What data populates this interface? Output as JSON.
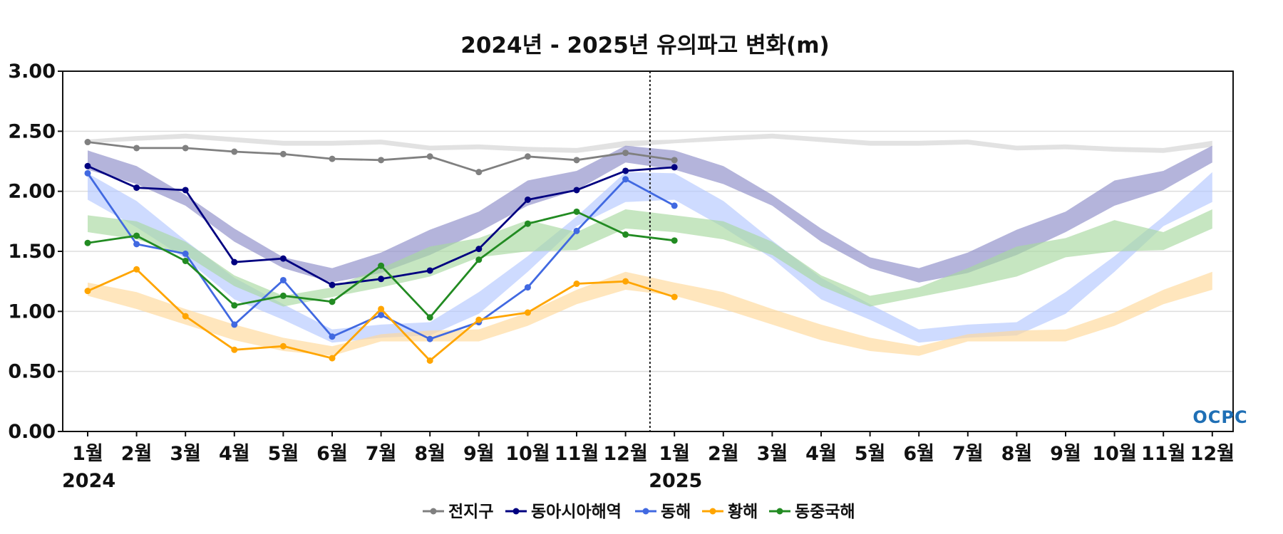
{
  "chart_data": {
    "type": "line",
    "title": "2024년 - 2025년 유의파고 변화(m)",
    "xlabel": "",
    "ylabel": "",
    "ylim": [
      0,
      3
    ],
    "y_ticks": [
      "0.00",
      "0.50",
      "1.00",
      "1.50",
      "2.00",
      "2.50",
      "3.00"
    ],
    "x_tick_labels": [
      "1월",
      "2월",
      "3월",
      "4월",
      "5월",
      "6월",
      "7월",
      "8월",
      "9월",
      "10월",
      "11월",
      "12월",
      "1월",
      "2월",
      "3월",
      "4월",
      "5월",
      "6월",
      "7월",
      "8월",
      "9월",
      "10월",
      "11월",
      "12월"
    ],
    "year_labels": [
      "2024",
      "2025"
    ],
    "year_divider_after_month_index": 11,
    "grid": "horizontal",
    "legend_position": "bottom",
    "series": [
      {
        "name": "전지구",
        "color": "#808080",
        "values": [
          2.41,
          2.36,
          2.36,
          2.33,
          2.31,
          2.27,
          2.26,
          2.29,
          2.16,
          2.29,
          2.26,
          2.32,
          2.26
        ]
      },
      {
        "name": "동아시아해역",
        "color": "#000080",
        "values": [
          2.21,
          2.03,
          2.01,
          1.41,
          1.44,
          1.22,
          1.27,
          1.34,
          1.52,
          1.93,
          2.01,
          2.17,
          2.2
        ]
      },
      {
        "name": "동해",
        "color": "#4169E1",
        "values": [
          2.15,
          1.56,
          1.48,
          0.89,
          1.26,
          0.79,
          0.97,
          0.77,
          0.91,
          1.2,
          1.67,
          2.1,
          1.88
        ]
      },
      {
        "name": "황해",
        "color": "#FFA500",
        "values": [
          1.17,
          1.35,
          0.96,
          0.68,
          0.71,
          0.61,
          1.02,
          0.59,
          0.93,
          0.99,
          1.23,
          1.25,
          1.12
        ]
      },
      {
        "name": "동중국해",
        "color": "#228B22",
        "values": [
          1.57,
          1.63,
          1.42,
          1.05,
          1.13,
          1.08,
          1.38,
          0.95,
          1.43,
          1.73,
          1.83,
          1.64,
          1.59
        ]
      }
    ],
    "climatology_bands": [
      {
        "color": "#D3D3D3",
        "low": [
          2.4,
          2.42,
          2.44,
          2.41,
          2.38,
          2.38,
          2.39,
          2.34,
          2.35,
          2.33,
          2.32,
          2.37
        ],
        "high": [
          2.43,
          2.46,
          2.48,
          2.45,
          2.42,
          2.42,
          2.43,
          2.38,
          2.39,
          2.37,
          2.36,
          2.42
        ]
      },
      {
        "color": "#8C8CC8",
        "low": [
          2.18,
          2.06,
          1.88,
          1.58,
          1.36,
          1.24,
          1.32,
          1.47,
          1.66,
          1.88,
          2.01,
          2.24
        ],
        "high": [
          2.34,
          2.21,
          1.97,
          1.69,
          1.45,
          1.36,
          1.49,
          1.68,
          1.83,
          2.09,
          2.17,
          2.38
        ]
      },
      {
        "color": "#B4C8FF",
        "low": [
          1.93,
          1.7,
          1.44,
          1.1,
          0.93,
          0.74,
          0.78,
          0.8,
          0.98,
          1.33,
          1.71,
          1.91
        ],
        "high": [
          2.15,
          1.92,
          1.59,
          1.28,
          1.06,
          0.85,
          0.89,
          0.91,
          1.16,
          1.46,
          1.79,
          2.16
        ]
      },
      {
        "color": "#FFD99A",
        "low": [
          1.13,
          1.02,
          0.89,
          0.76,
          0.67,
          0.63,
          0.75,
          0.75,
          0.75,
          0.88,
          1.06,
          1.18
        ],
        "high": [
          1.24,
          1.16,
          1.02,
          0.89,
          0.78,
          0.71,
          0.81,
          0.84,
          0.85,
          0.99,
          1.18,
          1.33
        ]
      },
      {
        "color": "#A8D8A0",
        "low": [
          1.66,
          1.6,
          1.47,
          1.21,
          1.04,
          1.12,
          1.2,
          1.29,
          1.45,
          1.5,
          1.51,
          1.69
        ],
        "high": [
          1.8,
          1.75,
          1.58,
          1.3,
          1.13,
          1.2,
          1.36,
          1.54,
          1.61,
          1.76,
          1.66,
          1.85
        ]
      }
    ]
  },
  "logo": {
    "text": "OCPC"
  }
}
